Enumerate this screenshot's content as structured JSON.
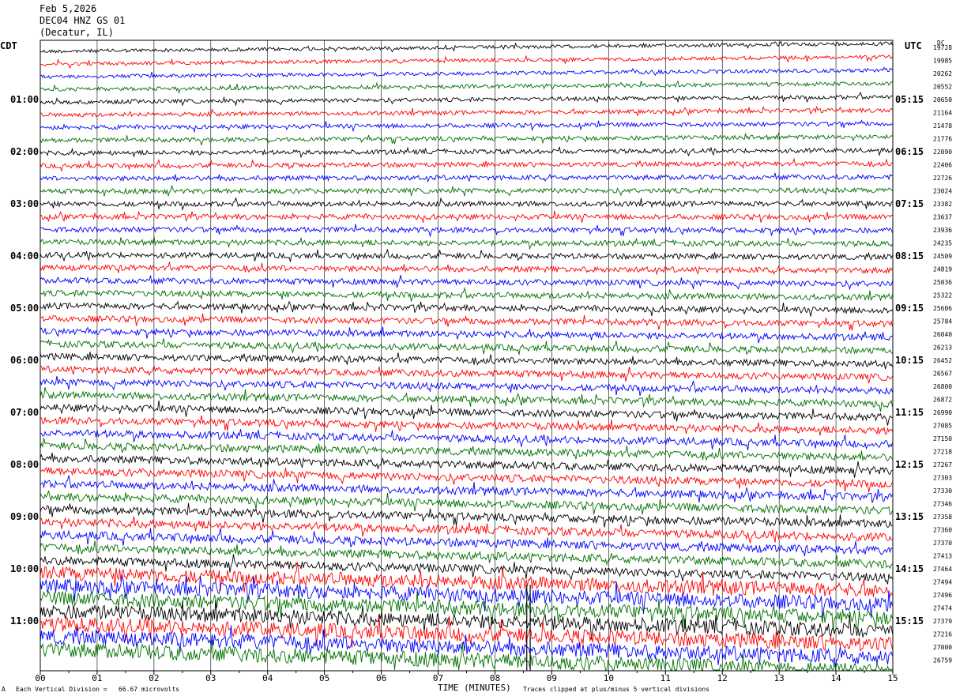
{
  "header": {
    "date": "Feb 5,2026",
    "station": "DEC04 HNZ GS 01",
    "location": "(Decatur, IL)"
  },
  "left_axis_title": "CDT",
  "right_axis_title": "UTC",
  "dc_label": "DC",
  "footer": {
    "left_mark": "A",
    "scale_note": "Each Vertical Division =   66.67 microvolts",
    "clip_note": "Traces clipped at plus/minus 5 vertical divisions"
  },
  "colors": {
    "trace_cycle": [
      "#000000",
      "#ff0000",
      "#0000ff",
      "#007000"
    ],
    "grid": "#000000",
    "background": "#ffffff"
  },
  "chart_data": {
    "type": "line",
    "title": "",
    "xlabel": "TIME (MINUTES)",
    "xlim": [
      0,
      15
    ],
    "x_ticks": [
      "00",
      "01",
      "02",
      "03",
      "04",
      "05",
      "06",
      "07",
      "08",
      "09",
      "10",
      "11",
      "12",
      "13",
      "14",
      "15"
    ],
    "grid": true,
    "traces_per_hour": 4,
    "trace_count": 48,
    "color_cycle": [
      "black",
      "red",
      "blue",
      "green"
    ],
    "left_hour_labels": [
      "01:00",
      "02:00",
      "03:00",
      "04:00",
      "05:00",
      "06:00",
      "07:00",
      "08:00",
      "09:00",
      "10:00",
      "11:00"
    ],
    "right_hour_labels": [
      "05:15",
      "06:15",
      "07:15",
      "08:15",
      "09:15",
      "10:15",
      "11:15",
      "12:15",
      "13:15",
      "14:15",
      "15:15"
    ],
    "dc_offsets": [
      "19728",
      "19985",
      "20262",
      "20552",
      "20650",
      "21164",
      "21478",
      "21776",
      "22090",
      "22406",
      "22726",
      "23024",
      "23382",
      "23637",
      "23936",
      "24235",
      "24509",
      "24819",
      "25036",
      "25322",
      "25606",
      "25784",
      "26040",
      "26213",
      "26452",
      "26567",
      "26800",
      "26872",
      "26990",
      "27085",
      "27150",
      "27218",
      "27267",
      "27303",
      "27330",
      "27346",
      "27358",
      "27360",
      "27370",
      "27413",
      "27464",
      "27494",
      "27496",
      "27474",
      "27379",
      "27216",
      "27000",
      "26759"
    ]
  }
}
